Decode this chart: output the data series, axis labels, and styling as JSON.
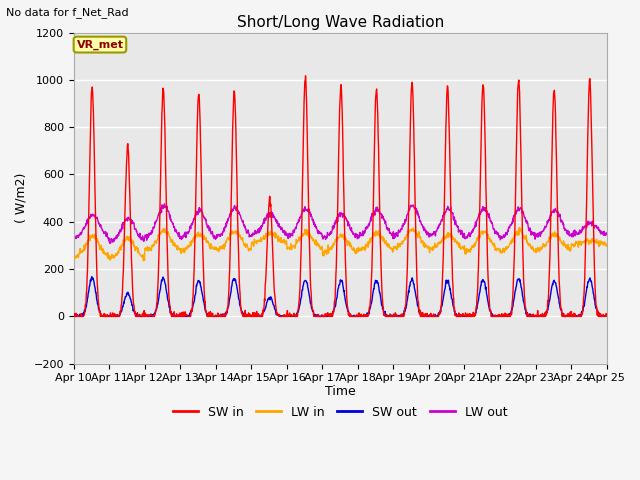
{
  "title": "Short/Long Wave Radiation",
  "top_left_text": "No data for f_Net_Rad",
  "ylabel": "( W/m2)",
  "xlabel": "Time",
  "ylim": [
    -200,
    1200
  ],
  "yticks": [
    -200,
    0,
    200,
    400,
    600,
    800,
    1000,
    1200
  ],
  "xtick_labels": [
    "Apr 10",
    "Apr 11",
    "Apr 12",
    "Apr 13",
    "Apr 14",
    "Apr 15",
    "Apr 16",
    "Apr 17",
    "Apr 18",
    "Apr 19",
    "Apr 20",
    "Apr 21",
    "Apr 22",
    "Apr 23",
    "Apr 24",
    "Apr 25"
  ],
  "colors": {
    "sw_in": "#ff0000",
    "lw_in": "#ffa500",
    "sw_out": "#0000dd",
    "lw_out": "#cc00cc"
  },
  "legend_labels": [
    "SW in",
    "LW in",
    "SW out",
    "LW out"
  ],
  "plot_bg_color": "#e8e8e8",
  "grid_color": "#ffffff",
  "annotation_box": "VR_met",
  "annotation_box_color": "#ffffaa",
  "annotation_box_edge": "#999900",
  "n_days": 15,
  "sw_peaks": [
    970,
    720,
    960,
    940,
    950,
    500,
    1010,
    970,
    960,
    990,
    970,
    990,
    1000,
    960,
    1000
  ],
  "lw_in_base": [
    250,
    245,
    280,
    280,
    280,
    310,
    285,
    270,
    280,
    290,
    285,
    275,
    275,
    280,
    305
  ],
  "lw_in_day_peaks": [
    340,
    330,
    360,
    345,
    360,
    350,
    355,
    340,
    350,
    365,
    345,
    355,
    360,
    345,
    320
  ],
  "sw_out_peaks": [
    165,
    100,
    160,
    150,
    160,
    80,
    155,
    150,
    150,
    155,
    150,
    155,
    160,
    150,
    160
  ],
  "lw_out_base": [
    330,
    315,
    335,
    330,
    335,
    345,
    340,
    330,
    340,
    340,
    338,
    332,
    332,
    338,
    345
  ],
  "lw_out_day_peaks": [
    430,
    415,
    465,
    445,
    460,
    435,
    455,
    435,
    450,
    470,
    455,
    455,
    455,
    450,
    395
  ]
}
